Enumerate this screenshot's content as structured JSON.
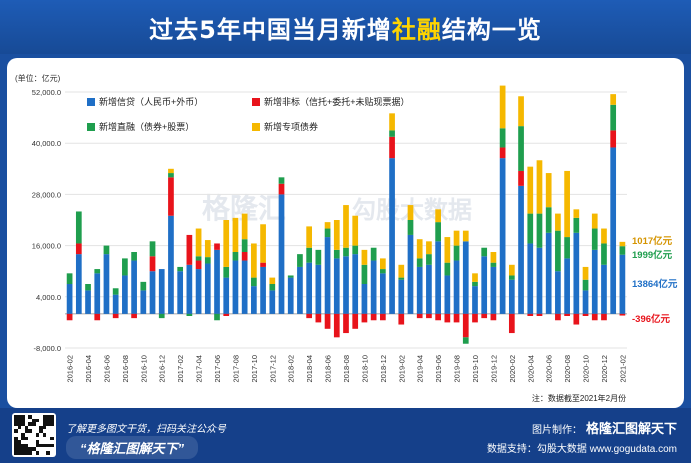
{
  "header": {
    "title_pre": "过去5年中国当月新增",
    "title_hl": "社融",
    "title_post": "结构一览"
  },
  "chart_data": {
    "type": "bar",
    "stacked": true,
    "unit_label": "(单位：亿元)",
    "ylim": [
      -8000,
      52000
    ],
    "yticks": [
      -8000,
      4000,
      16000,
      28000,
      40000,
      52000
    ],
    "ytick_labels": [
      "-8,000.0",
      "4,000.0",
      "16,000.0",
      "28,000.0",
      "40,000.0",
      "52,000.0"
    ],
    "xtick_labels": [
      "2016-02",
      "2016-04",
      "2016-06",
      "2016-08",
      "2016-10",
      "2016-12",
      "2017-02",
      "2017-04",
      "2017-06",
      "2017-08",
      "2017-10",
      "2017-12",
      "2018-02",
      "2018-04",
      "2018-06",
      "2018-08",
      "2018-10",
      "2018-12",
      "2019-02",
      "2019-04",
      "2019-06",
      "2019-08",
      "2019-10",
      "2019-12",
      "2020-02",
      "2020-04",
      "2020-06",
      "2020-08",
      "2020-10",
      "2020-12",
      "2021-02"
    ],
    "categories": [
      "2016-02",
      "2016-03",
      "2016-04",
      "2016-05",
      "2016-06",
      "2016-07",
      "2016-08",
      "2016-09",
      "2016-10",
      "2016-11",
      "2016-12",
      "2017-01",
      "2017-02",
      "2017-03",
      "2017-04",
      "2017-05",
      "2017-06",
      "2017-07",
      "2017-08",
      "2017-09",
      "2017-10",
      "2017-11",
      "2017-12",
      "2018-01",
      "2018-02",
      "2018-03",
      "2018-04",
      "2018-05",
      "2018-06",
      "2018-07",
      "2018-08",
      "2018-09",
      "2018-10",
      "2018-11",
      "2018-12",
      "2019-01",
      "2019-02",
      "2019-03",
      "2019-04",
      "2019-05",
      "2019-06",
      "2019-07",
      "2019-08",
      "2019-09",
      "2019-10",
      "2019-11",
      "2019-12",
      "2020-01",
      "2020-02",
      "2020-03",
      "2020-04",
      "2020-05",
      "2020-06",
      "2020-07",
      "2020-08",
      "2020-09",
      "2020-10",
      "2020-11",
      "2020-12",
      "2021-01",
      "2021-02"
    ],
    "series": [
      {
        "name": "新增信贷（人民币+外币）",
        "color": "#1f6fc6",
        "values": [
          7000,
          14000,
          5500,
          9500,
          14000,
          4500,
          9000,
          12500,
          5500,
          10000,
          10500,
          23000,
          10000,
          11500,
          10500,
          11800,
          15000,
          8500,
          12500,
          12500,
          6500,
          11000,
          5500,
          28000,
          8500,
          11000,
          12000,
          11500,
          18000,
          13000,
          13500,
          14000,
          7000,
          12500,
          9500,
          36500,
          8000,
          18500,
          11000,
          11500,
          17000,
          9000,
          12500,
          17000,
          6500,
          13500,
          11000,
          36500,
          8000,
          30000,
          16500,
          15500,
          19000,
          10000,
          13000,
          19000,
          5500,
          15000,
          11500,
          39000,
          13864
        ]
      },
      {
        "name": "新增非标（信托+委托+未贴现票据）",
        "color": "#e8131b",
        "values": [
          -1500,
          2500,
          0,
          -1500,
          0,
          -1000,
          0,
          -1000,
          0,
          3500,
          0,
          9000,
          0,
          7000,
          2000,
          0,
          1500,
          -500,
          0,
          2000,
          0,
          1000,
          0,
          2500,
          0,
          0,
          -1000,
          -2000,
          -3500,
          -5500,
          -4500,
          -3500,
          -2000,
          -1500,
          -1500,
          5000,
          -2500,
          0,
          -1000,
          -1000,
          -1500,
          -2000,
          -2000,
          -5500,
          -2000,
          -1000,
          -1500,
          2500,
          -4500,
          3500,
          -500,
          -500,
          0,
          -1500,
          -500,
          -2500,
          -500,
          -1500,
          -1500,
          4000,
          -396
        ]
      },
      {
        "name": "新增直融（债券+股票）",
        "color": "#1f9e4e",
        "values": [
          2500,
          7500,
          1500,
          1000,
          2000,
          1500,
          4000,
          2000,
          2000,
          3500,
          -1000,
          1000,
          1000,
          -500,
          1000,
          1500,
          -1500,
          2500,
          2000,
          3000,
          2000,
          0,
          1500,
          1500,
          500,
          3000,
          3500,
          3500,
          2000,
          2000,
          2000,
          2000,
          4500,
          3000,
          1000,
          1500,
          500,
          3500,
          2000,
          2500,
          4500,
          3000,
          3500,
          -1500,
          1000,
          2000,
          1000,
          4500,
          1000,
          10500,
          7000,
          8000,
          6000,
          9500,
          5000,
          3500,
          2500,
          5000,
          5000,
          6000,
          1999
        ]
      },
      {
        "name": "新增专项债券",
        "color": "#f5b800",
        "values": [
          0,
          0,
          0,
          0,
          0,
          0,
          0,
          0,
          0,
          0,
          0,
          1000,
          0,
          0,
          6500,
          4000,
          0,
          11000,
          8000,
          6000,
          8000,
          9000,
          1500,
          0,
          0,
          0,
          5000,
          0,
          1500,
          7000,
          10000,
          7000,
          3500,
          0,
          2500,
          4000,
          3000,
          3500,
          4500,
          3000,
          3000,
          6000,
          3500,
          2500,
          2000,
          0,
          2500,
          10000,
          2500,
          7000,
          11000,
          12500,
          8000,
          4000,
          15500,
          2000,
          3000,
          3500,
          3500,
          2500,
          1017
        ]
      }
    ],
    "annotations": [
      {
        "text": "1017亿元",
        "color": "#d59400"
      },
      {
        "text": "1999亿元",
        "color": "#1f9e4e"
      },
      {
        "text": "13864亿元",
        "color": "#1f6fc6"
      },
      {
        "text": "-396亿元",
        "color": "#e8131b"
      }
    ],
    "note": "注：数据截至2021年2月份",
    "watermarks": [
      "格隆汇",
      "勾股大数据"
    ]
  },
  "footer": {
    "tagline1": "了解更多图文干货，扫码关注公众号",
    "tagline2": "“格隆汇图解天下”",
    "credit_label": "图片制作：",
    "credit_brand": "格隆汇图解天下",
    "data_source": "数据支持：勾股大数据 www.gogudata.com"
  }
}
